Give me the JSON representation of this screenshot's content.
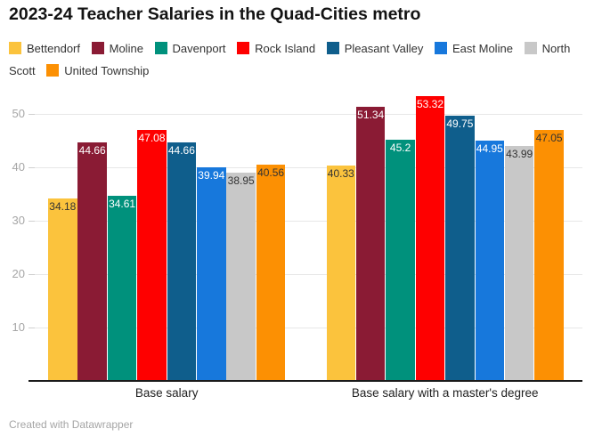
{
  "title": "2023-24 Teacher Salaries in the Quad-Cities metro",
  "footer": "Created with Datawrapper",
  "chart_data": {
    "type": "bar",
    "title": "2023-24 Teacher Salaries in the Quad-Cities metro",
    "xlabel": "",
    "ylabel": "",
    "ylim": [
      0,
      55
    ],
    "yticks": [
      10,
      20,
      30,
      40,
      50
    ],
    "grid": true,
    "legend_position": "top",
    "categories": [
      "Base salary",
      "Base salary with a master's degree"
    ],
    "series": [
      {
        "name": "Bettendorf",
        "color": "#FBC33D",
        "label_color": "#333333",
        "values": [
          34.18,
          40.33
        ],
        "labels": [
          "34.18",
          "40.33"
        ]
      },
      {
        "name": "Moline",
        "color": "#8A1B34",
        "label_color": "#FFFFFF",
        "values": [
          44.66,
          51.34
        ],
        "labels": [
          "44.66",
          "51.34"
        ]
      },
      {
        "name": "Davenport",
        "color": "#00917C",
        "label_color": "#FFFFFF",
        "values": [
          34.61,
          45.2
        ],
        "labels": [
          "34.61",
          "45.2"
        ]
      },
      {
        "name": "Rock Island",
        "color": "#FE0000",
        "label_color": "#FFFFFF",
        "values": [
          47.08,
          53.32
        ],
        "labels": [
          "47.08",
          "53.32"
        ]
      },
      {
        "name": "Pleasant Valley",
        "color": "#0F5E8C",
        "label_color": "#FFFFFF",
        "values": [
          44.66,
          49.75
        ],
        "labels": [
          "44.66",
          "49.75"
        ]
      },
      {
        "name": "East Moline",
        "color": "#1778DC",
        "label_color": "#FFFFFF",
        "values": [
          39.94,
          44.95
        ],
        "labels": [
          "39.94",
          "44.95"
        ]
      },
      {
        "name": "North Scott",
        "color": "#C8C8C8",
        "label_color": "#333333",
        "values": [
          38.95,
          43.99
        ],
        "labels": [
          "38.95",
          "43.99"
        ]
      },
      {
        "name": "United Township",
        "color": "#FC9003",
        "label_color": "#333333",
        "values": [
          40.56,
          47.05
        ],
        "labels": [
          "40.56",
          "47.05"
        ]
      }
    ]
  }
}
